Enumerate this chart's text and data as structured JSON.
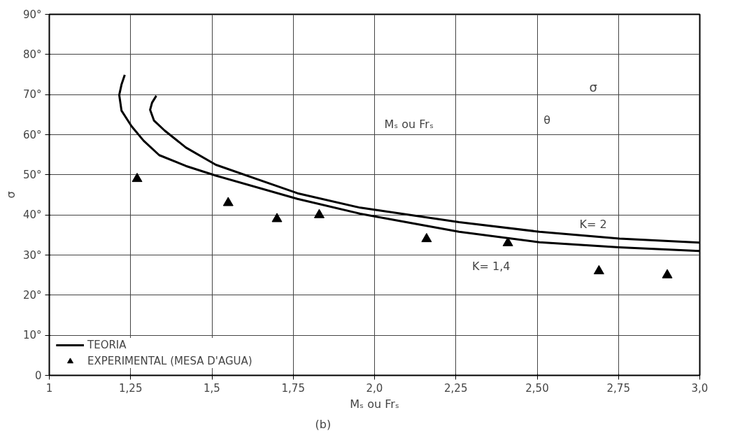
{
  "chart_data": {
    "type": "line",
    "xlabel": "Mₛ ou Frₛ",
    "ylabel": "σ",
    "xlim": [
      1,
      3
    ],
    "ylim": [
      0,
      90
    ],
    "xticks": [
      1,
      {
        "value": 1.25,
        "label": "1,25"
      },
      {
        "value": 1.5,
        "label": "1,5"
      },
      {
        "value": 1.75,
        "label": "1,75"
      },
      {
        "value": 2,
        "label": "2,0"
      },
      {
        "value": 2.25,
        "label": "2,25"
      },
      {
        "value": 2.5,
        "label": "2,50"
      },
      {
        "value": 2.75,
        "label": "2,75"
      },
      {
        "value": 3,
        "label": "3,0"
      }
    ],
    "yticks": [
      0,
      {
        "value": 10,
        "label": "10°"
      },
      {
        "value": 20,
        "label": "20°"
      },
      {
        "value": 30,
        "label": "30°"
      },
      {
        "value": 40,
        "label": "40°"
      },
      {
        "value": 50,
        "label": "50°"
      },
      {
        "value": 60,
        "label": "60°"
      },
      {
        "value": 70,
        "label": "70°"
      },
      {
        "value": 80,
        "label": "80°"
      },
      {
        "value": 90,
        "label": "90°"
      }
    ],
    "grid": true,
    "legend": "bottom left",
    "series": [
      {
        "color": "#000000",
        "x": [
          1.232,
          1.222,
          1.215,
          1.222,
          1.253,
          1.29,
          1.338,
          1.42,
          1.512,
          1.763,
          1.956,
          2.26,
          2.507,
          2.753,
          3.0
        ],
        "values": [
          74.9,
          72.5,
          69.9,
          66,
          62.1,
          58.5,
          54.9,
          52.2,
          49.8,
          44.0,
          40.3,
          35.8,
          33.2,
          31.9,
          31.0
        ]
      },
      {
        "color": "#000000",
        "x": [
          1.329,
          1.316,
          1.31,
          1.322,
          1.355,
          1.42,
          1.512,
          1.763,
          1.956,
          2.26,
          2.507,
          2.753,
          3.0
        ],
        "values": [
          69.7,
          68,
          66.2,
          63.5,
          61.0,
          56.8,
          52.5,
          45.4,
          41.8,
          38.2,
          35.8,
          34.1,
          33.1
        ]
      },
      {
        "type": "scatter",
        "name": "EXPERIMENTAL (MESA D'AGUA)",
        "color": "#000000",
        "marker": "triangle",
        "x": [
          1.27,
          1.55,
          1.7,
          1.83,
          2.16,
          2.41,
          2.69,
          2.9
        ],
        "values": [
          49,
          43,
          39,
          40,
          34,
          33,
          26,
          25
        ]
      }
    ],
    "annotations": [
      "TEORIA",
      "K= 2",
      "K= 1,4",
      "Mₛ ou Frₛ",
      "σ",
      "θ",
      "(b)"
    ]
  }
}
